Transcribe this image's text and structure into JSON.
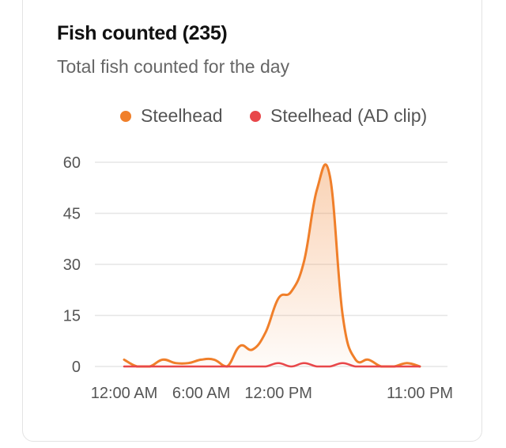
{
  "header": {
    "title": "Fish counted (235)",
    "subtitle": "Total fish counted for the day"
  },
  "chart_data": {
    "type": "area",
    "title": "Fish counted (235)",
    "subtitle": "Total fish counted for the day",
    "xlabel": "",
    "ylabel": "",
    "x_tick_labels": [
      "12:00 AM",
      "6:00 AM",
      "12:00 PM",
      "11:00 PM"
    ],
    "y_ticks": [
      0,
      15,
      30,
      45,
      60
    ],
    "ylim": [
      0,
      60
    ],
    "x_range_hours": [
      0,
      23
    ],
    "grid": true,
    "legend_position": "top",
    "x_hours": [
      0,
      1,
      2,
      3,
      4,
      5,
      6,
      7,
      8,
      9,
      10,
      11,
      12,
      13,
      14,
      15,
      16,
      17,
      18,
      19,
      20,
      21,
      22,
      23
    ],
    "series": [
      {
        "name": "Steelhead",
        "color": "#f07f2a",
        "fill": true,
        "values": [
          2,
          0,
          0,
          2,
          1,
          1,
          2,
          2,
          0,
          6,
          5,
          10,
          20,
          22,
          31,
          52,
          56,
          15,
          2,
          2,
          0,
          0,
          1,
          0
        ]
      },
      {
        "name": "Steelhead (AD clip)",
        "color": "#e8474a",
        "fill": false,
        "values": [
          0,
          0,
          0,
          0,
          0,
          0,
          0,
          0,
          0,
          0,
          0,
          0,
          1,
          0,
          1,
          0,
          0,
          1,
          0,
          0,
          0,
          0,
          0,
          0
        ]
      }
    ]
  }
}
